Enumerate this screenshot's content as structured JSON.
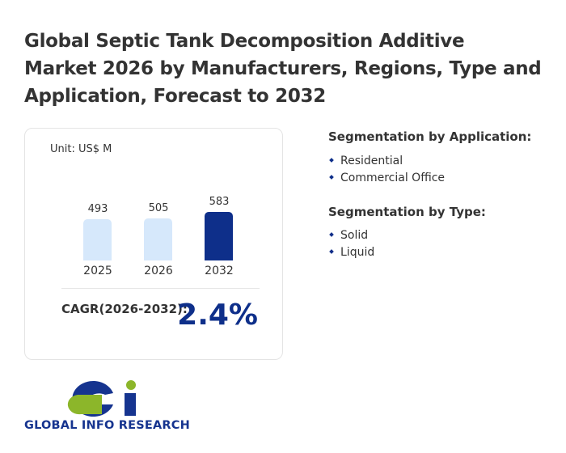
{
  "title": "Global Septic Tank Decomposition Additive Market 2026 by Manufacturers, Regions, Type and Application, Forecast to 2032",
  "card": {
    "unit": "Unit: US$ M",
    "cagr_label": "CAGR(2026-2032):",
    "cagr_value": "2.4%"
  },
  "chart_data": {
    "type": "bar",
    "categories": [
      "2025",
      "2026",
      "2032"
    ],
    "values": [
      493,
      505,
      583
    ],
    "labels": [
      "493",
      "505",
      "583"
    ],
    "colors": [
      "#d6e8fb",
      "#d6e8fb",
      "#0e2f8a"
    ],
    "ylabel": "Unit: US$ M"
  },
  "segments": {
    "application": {
      "heading": "Segmentation by Application:",
      "items": [
        "Residential",
        "Commercial Office"
      ]
    },
    "type": {
      "heading": "Segmentation by Type:",
      "items": [
        "Solid",
        "Liquid"
      ]
    }
  },
  "logo": {
    "text": "GLOBAL INFO RESEARCH"
  },
  "colors": {
    "accent": "#0e2f8a",
    "light_bar": "#d6e8fb",
    "logo_green": "#8cb62a"
  }
}
